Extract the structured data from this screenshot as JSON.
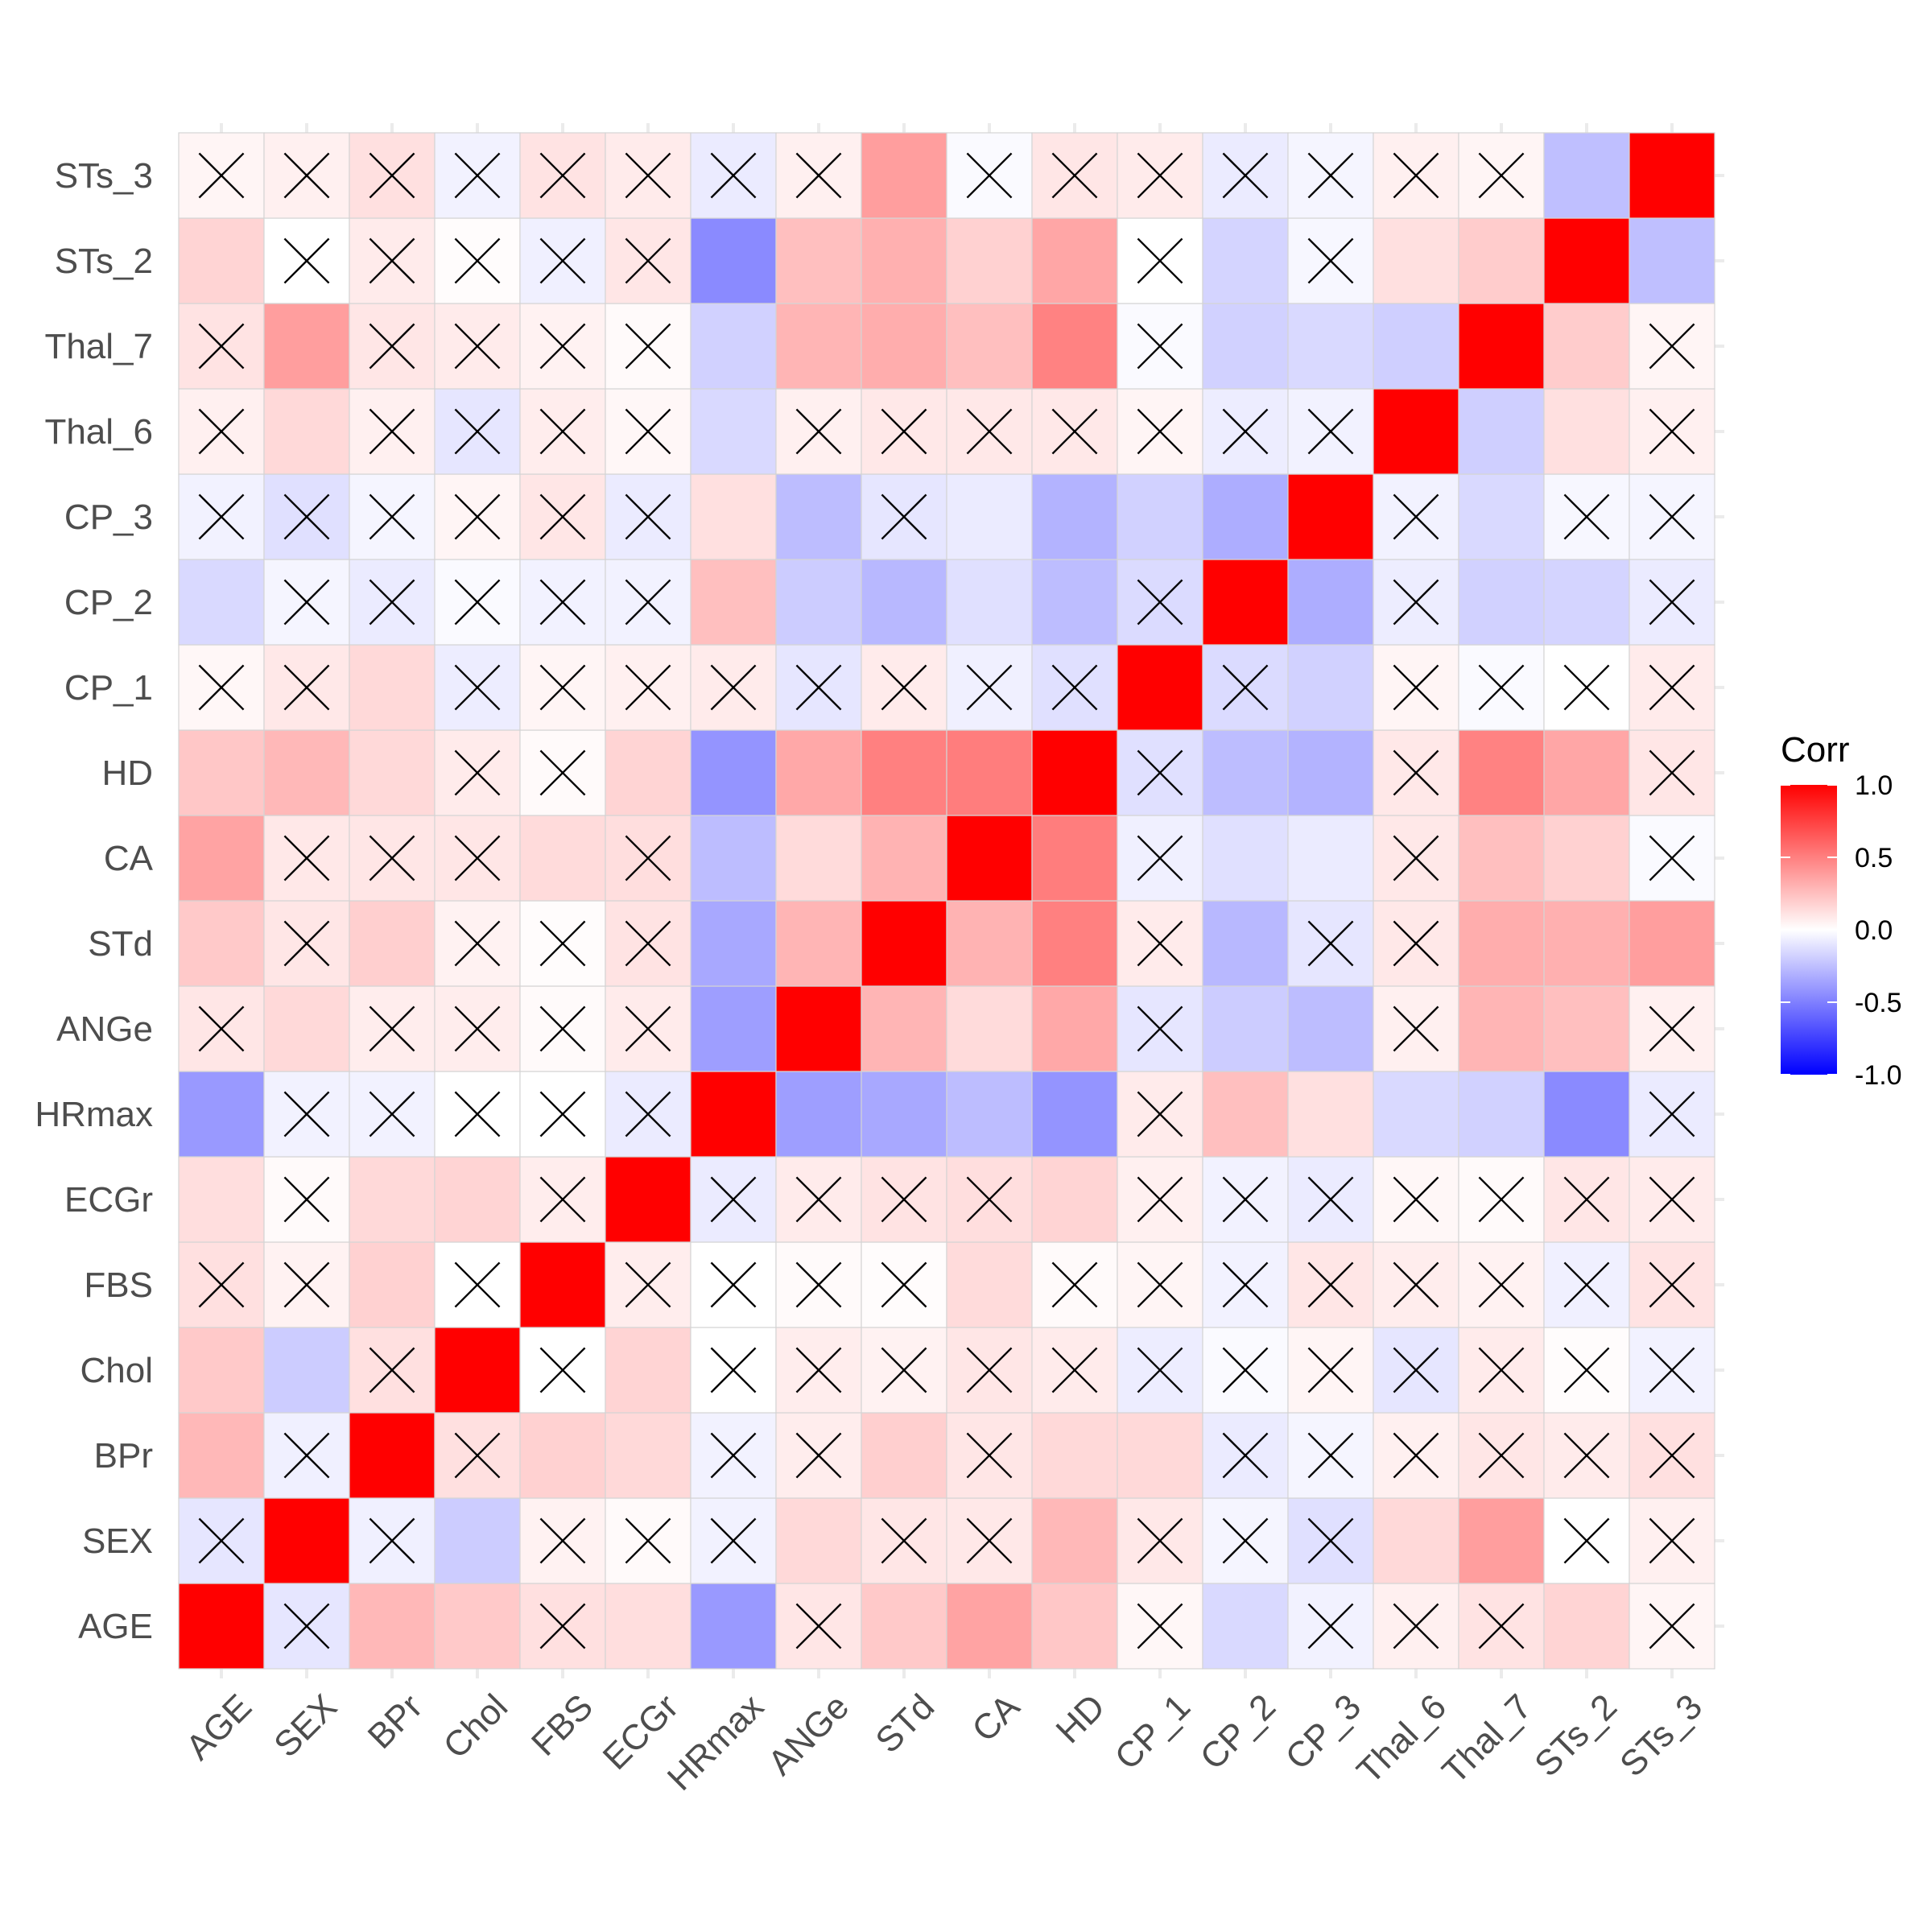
{
  "chart_data": {
    "type": "heatmap",
    "variables": [
      "AGE",
      "SEX",
      "BPr",
      "Chol",
      "FBS",
      "ECGr",
      "HRmax",
      "ANGe",
      "STd",
      "CA",
      "HD",
      "CP_1",
      "CP_2",
      "CP_3",
      "Thal_6",
      "Thal_7",
      "STs_2",
      "STs_3"
    ],
    "matrix": [
      [
        1.0,
        -0.1,
        0.28,
        0.21,
        0.12,
        0.13,
        -0.4,
        0.1,
        0.21,
        0.36,
        0.22,
        0.03,
        -0.15,
        -0.05,
        0.06,
        0.11,
        0.17,
        0.04
      ],
      [
        -0.1,
        1.0,
        -0.06,
        -0.2,
        0.05,
        0.02,
        -0.05,
        0.15,
        0.1,
        0.09,
        0.28,
        0.09,
        -0.04,
        -0.12,
        0.15,
        0.38,
        0.0,
        0.06
      ],
      [
        0.28,
        -0.06,
        1.0,
        0.12,
        0.18,
        0.15,
        -0.05,
        0.07,
        0.19,
        0.1,
        0.15,
        0.15,
        -0.08,
        -0.04,
        0.06,
        0.1,
        0.08,
        0.12
      ],
      [
        0.21,
        -0.2,
        0.12,
        1.0,
        0.0,
        0.17,
        0.0,
        0.07,
        0.05,
        0.1,
        0.08,
        -0.07,
        -0.02,
        0.04,
        -0.1,
        0.08,
        0.01,
        -0.05
      ],
      [
        0.12,
        0.05,
        0.18,
        0.0,
        1.0,
        0.07,
        0.0,
        0.02,
        0.01,
        0.14,
        0.02,
        0.04,
        -0.05,
        0.1,
        0.07,
        0.05,
        -0.06,
        0.11
      ],
      [
        0.13,
        0.02,
        0.15,
        0.17,
        0.07,
        1.0,
        -0.08,
        0.08,
        0.11,
        0.13,
        0.17,
        0.06,
        -0.05,
        -0.08,
        0.03,
        0.02,
        0.1,
        0.08
      ],
      [
        -0.4,
        -0.05,
        -0.05,
        0.0,
        0.0,
        -0.08,
        1.0,
        -0.38,
        -0.34,
        -0.26,
        -0.42,
        0.08,
        0.25,
        0.12,
        -0.15,
        -0.18,
        -0.46,
        -0.08
      ],
      [
        0.1,
        0.15,
        0.07,
        0.07,
        0.02,
        0.08,
        -0.38,
        1.0,
        0.29,
        0.14,
        0.34,
        -0.1,
        -0.2,
        -0.26,
        0.06,
        0.29,
        0.25,
        0.06
      ],
      [
        0.21,
        0.1,
        0.19,
        0.05,
        0.01,
        0.11,
        -0.34,
        0.29,
        1.0,
        0.3,
        0.5,
        0.08,
        -0.28,
        -0.1,
        0.09,
        0.32,
        0.31,
        0.38
      ],
      [
        0.36,
        0.09,
        0.1,
        0.1,
        0.14,
        0.13,
        -0.26,
        0.14,
        0.3,
        1.0,
        0.51,
        -0.06,
        -0.12,
        -0.08,
        0.09,
        0.25,
        0.18,
        -0.02
      ],
      [
        0.22,
        0.28,
        0.15,
        0.08,
        0.02,
        0.17,
        -0.42,
        0.34,
        0.5,
        0.51,
        1.0,
        -0.12,
        -0.26,
        -0.3,
        0.09,
        0.49,
        0.35,
        0.1
      ],
      [
        0.03,
        0.09,
        0.15,
        -0.07,
        0.04,
        0.06,
        0.08,
        -0.1,
        0.08,
        -0.06,
        -0.12,
        1.0,
        -0.14,
        -0.18,
        0.04,
        -0.02,
        0.0,
        0.08
      ],
      [
        -0.15,
        -0.04,
        -0.08,
        -0.02,
        -0.05,
        -0.05,
        0.25,
        -0.2,
        -0.28,
        -0.12,
        -0.26,
        -0.14,
        1.0,
        -0.32,
        -0.07,
        -0.18,
        -0.17,
        -0.08
      ],
      [
        -0.05,
        -0.12,
        -0.04,
        0.04,
        0.1,
        -0.08,
        0.12,
        -0.26,
        -0.1,
        -0.08,
        -0.3,
        -0.18,
        -0.32,
        1.0,
        -0.05,
        -0.15,
        -0.03,
        -0.04
      ],
      [
        0.06,
        0.15,
        0.06,
        -0.1,
        0.07,
        0.03,
        -0.15,
        0.06,
        0.09,
        0.09,
        0.09,
        0.04,
        -0.07,
        -0.05,
        1.0,
        -0.19,
        0.12,
        0.06
      ],
      [
        0.11,
        0.38,
        0.1,
        0.08,
        0.05,
        0.02,
        -0.18,
        0.29,
        0.32,
        0.25,
        0.49,
        -0.02,
        -0.18,
        -0.15,
        -0.19,
        1.0,
        0.2,
        0.04
      ],
      [
        0.17,
        0.0,
        0.08,
        0.01,
        -0.06,
        0.1,
        -0.46,
        0.25,
        0.31,
        0.18,
        0.35,
        0.0,
        -0.17,
        -0.03,
        0.12,
        0.2,
        1.0,
        -0.25
      ],
      [
        0.04,
        0.06,
        0.12,
        -0.05,
        0.11,
        0.08,
        -0.08,
        0.06,
        0.38,
        -0.02,
        0.1,
        0.08,
        -0.08,
        -0.04,
        0.06,
        0.04,
        -0.25,
        1.0
      ]
    ],
    "insignificant": [
      [
        "AGE",
        "SEX"
      ],
      [
        "AGE",
        "FBS"
      ],
      [
        "AGE",
        "ANGe"
      ],
      [
        "AGE",
        "CP_1"
      ],
      [
        "AGE",
        "CP_3"
      ],
      [
        "AGE",
        "Thal_6"
      ],
      [
        "AGE",
        "Thal_7"
      ],
      [
        "AGE",
        "STs_3"
      ],
      [
        "SEX",
        "BPr"
      ],
      [
        "SEX",
        "FBS"
      ],
      [
        "SEX",
        "ECGr"
      ],
      [
        "SEX",
        "HRmax"
      ],
      [
        "SEX",
        "STd"
      ],
      [
        "SEX",
        "CA"
      ],
      [
        "SEX",
        "CP_1"
      ],
      [
        "SEX",
        "CP_2"
      ],
      [
        "SEX",
        "CP_3"
      ],
      [
        "SEX",
        "STs_2"
      ],
      [
        "SEX",
        "STs_3"
      ],
      [
        "BPr",
        "Chol"
      ],
      [
        "BPr",
        "HRmax"
      ],
      [
        "BPr",
        "ANGe"
      ],
      [
        "BPr",
        "CA"
      ],
      [
        "BPr",
        "CP_2"
      ],
      [
        "BPr",
        "CP_3"
      ],
      [
        "BPr",
        "Thal_6"
      ],
      [
        "BPr",
        "Thal_7"
      ],
      [
        "BPr",
        "STs_2"
      ],
      [
        "BPr",
        "STs_3"
      ],
      [
        "Chol",
        "FBS"
      ],
      [
        "Chol",
        "HRmax"
      ],
      [
        "Chol",
        "ANGe"
      ],
      [
        "Chol",
        "STd"
      ],
      [
        "Chol",
        "CA"
      ],
      [
        "Chol",
        "HD"
      ],
      [
        "Chol",
        "CP_1"
      ],
      [
        "Chol",
        "CP_2"
      ],
      [
        "Chol",
        "CP_3"
      ],
      [
        "Chol",
        "Thal_6"
      ],
      [
        "Chol",
        "Thal_7"
      ],
      [
        "Chol",
        "STs_2"
      ],
      [
        "Chol",
        "STs_3"
      ],
      [
        "FBS",
        "ECGr"
      ],
      [
        "FBS",
        "HRmax"
      ],
      [
        "FBS",
        "ANGe"
      ],
      [
        "FBS",
        "STd"
      ],
      [
        "FBS",
        "HD"
      ],
      [
        "FBS",
        "CP_1"
      ],
      [
        "FBS",
        "CP_2"
      ],
      [
        "FBS",
        "CP_3"
      ],
      [
        "FBS",
        "Thal_6"
      ],
      [
        "FBS",
        "Thal_7"
      ],
      [
        "FBS",
        "STs_2"
      ],
      [
        "FBS",
        "STs_3"
      ],
      [
        "ECGr",
        "HRmax"
      ],
      [
        "ECGr",
        "ANGe"
      ],
      [
        "ECGr",
        "STd"
      ],
      [
        "ECGr",
        "CA"
      ],
      [
        "ECGr",
        "CP_1"
      ],
      [
        "ECGr",
        "CP_2"
      ],
      [
        "ECGr",
        "CP_3"
      ],
      [
        "ECGr",
        "Thal_6"
      ],
      [
        "ECGr",
        "Thal_7"
      ],
      [
        "ECGr",
        "STs_2"
      ],
      [
        "ECGr",
        "STs_3"
      ],
      [
        "HRmax",
        "CP_1"
      ],
      [
        "HRmax",
        "STs_3"
      ],
      [
        "ANGe",
        "CP_1"
      ],
      [
        "ANGe",
        "Thal_6"
      ],
      [
        "ANGe",
        "STs_3"
      ],
      [
        "STd",
        "CP_1"
      ],
      [
        "STd",
        "CP_3"
      ],
      [
        "STd",
        "Thal_6"
      ],
      [
        "CA",
        "CP_1"
      ],
      [
        "CA",
        "Thal_6"
      ],
      [
        "CA",
        "STs_3"
      ],
      [
        "HD",
        "CP_1"
      ],
      [
        "HD",
        "Thal_6"
      ],
      [
        "HD",
        "STs_3"
      ],
      [
        "CP_1",
        "CP_2"
      ],
      [
        "CP_1",
        "Thal_6"
      ],
      [
        "CP_1",
        "Thal_7"
      ],
      [
        "CP_1",
        "STs_2"
      ],
      [
        "CP_1",
        "STs_3"
      ],
      [
        "CP_2",
        "Thal_6"
      ],
      [
        "CP_2",
        "STs_3"
      ],
      [
        "CP_3",
        "Thal_6"
      ],
      [
        "CP_3",
        "STs_2"
      ],
      [
        "CP_3",
        "STs_3"
      ],
      [
        "Thal_6",
        "STs_3"
      ],
      [
        "Thal_7",
        "STs_3"
      ]
    ],
    "value_range": [
      -1.0,
      1.0
    ],
    "color_scale": {
      "low": "#0000FF",
      "mid": "#FFFFFF",
      "high": "#FF0000"
    },
    "legend": {
      "title": "Corr",
      "ticks": [
        1.0,
        0.5,
        0.0,
        -0.5,
        -1.0
      ],
      "tick_labels": [
        "1.0",
        "0.5",
        "0.0",
        "-0.5",
        "-1.0"
      ],
      "position": "right"
    },
    "grid": true,
    "insignificant_marker": "cross"
  }
}
